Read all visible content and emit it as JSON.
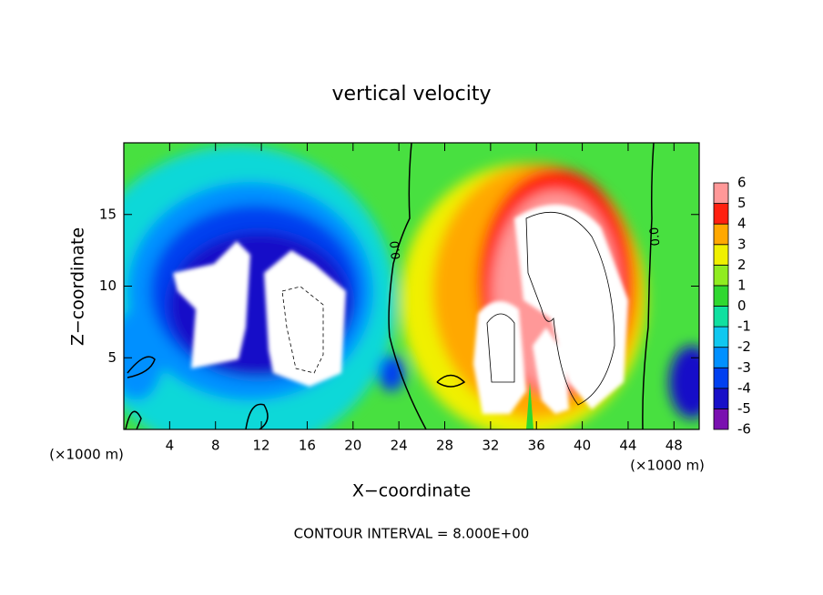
{
  "chart_data": {
    "type": "contour",
    "title": "vertical velocity",
    "x_label": "X−coordinate",
    "y_label": "Z−coordinate",
    "axis_unit": "(×1000 m)",
    "xlim": [
      0,
      50.2
    ],
    "xticks": [
      4,
      8,
      12,
      16,
      20,
      24,
      28,
      32,
      36,
      40,
      44,
      48
    ],
    "ylim": [
      0,
      20
    ],
    "yticks": [
      5,
      10,
      15
    ],
    "colorbar": {
      "levels": [
        -6,
        -5,
        -4,
        -3,
        -2,
        -1,
        0,
        1,
        2,
        3,
        4,
        5,
        6
      ],
      "colors": [
        "#7a10b0",
        "#1810c8",
        "#0040f0",
        "#0090ff",
        "#10c8f0",
        "#10e0a0",
        "#30d830",
        "#90ec20",
        "#f0f000",
        "#ffa800",
        "#ff2010",
        "#ff9898"
      ]
    },
    "contour_label": "0.0",
    "footer": "CONTOUR INTERVAL = 8.000E+00"
  }
}
